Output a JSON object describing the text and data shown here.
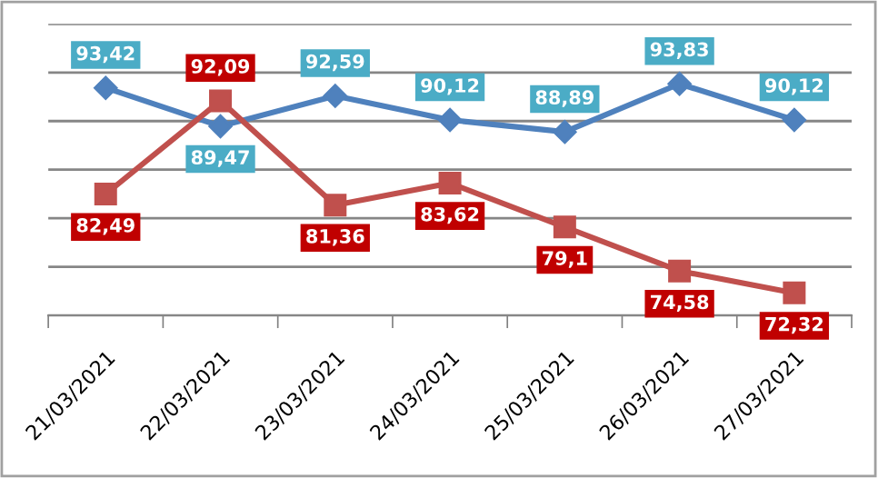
{
  "chart_data": {
    "type": "line",
    "categories": [
      "21/03/2021",
      "22/03/2021",
      "23/03/2021",
      "24/03/2021",
      "25/03/2021",
      "26/03/2021",
      "27/03/2021"
    ],
    "series": [
      {
        "color": "#4f81bd",
        "marker": "diamond",
        "values": [
          93.42,
          89.47,
          92.59,
          90.12,
          88.89,
          93.83,
          90.12
        ],
        "value_labels": [
          "93,42",
          "89,47",
          "92,59",
          "90,12",
          "88,89",
          "93,83",
          "90,12"
        ]
      },
      {
        "color": "#c0504d",
        "marker": "square",
        "values": [
          82.49,
          92.09,
          81.36,
          83.62,
          79.1,
          74.58,
          72.32
        ],
        "value_labels": [
          "82,49",
          "92,09",
          "81,36",
          "83,62",
          "79,1",
          "74,58",
          "72,32"
        ]
      }
    ],
    "ylim": [
      70,
      100
    ],
    "yticks": [
      {
        "value": 70,
        "label": null
      },
      {
        "value": 75,
        "label": null
      },
      {
        "value": 80,
        "label": null
      },
      {
        "value": 85,
        "label": null
      },
      {
        "value": 90,
        "label": null
      },
      {
        "value": 95,
        "label": null
      },
      {
        "value": 100,
        "label": null
      }
    ],
    "tick_labels": "x",
    "grid": "y",
    "legend": false,
    "line_style": "solid"
  }
}
